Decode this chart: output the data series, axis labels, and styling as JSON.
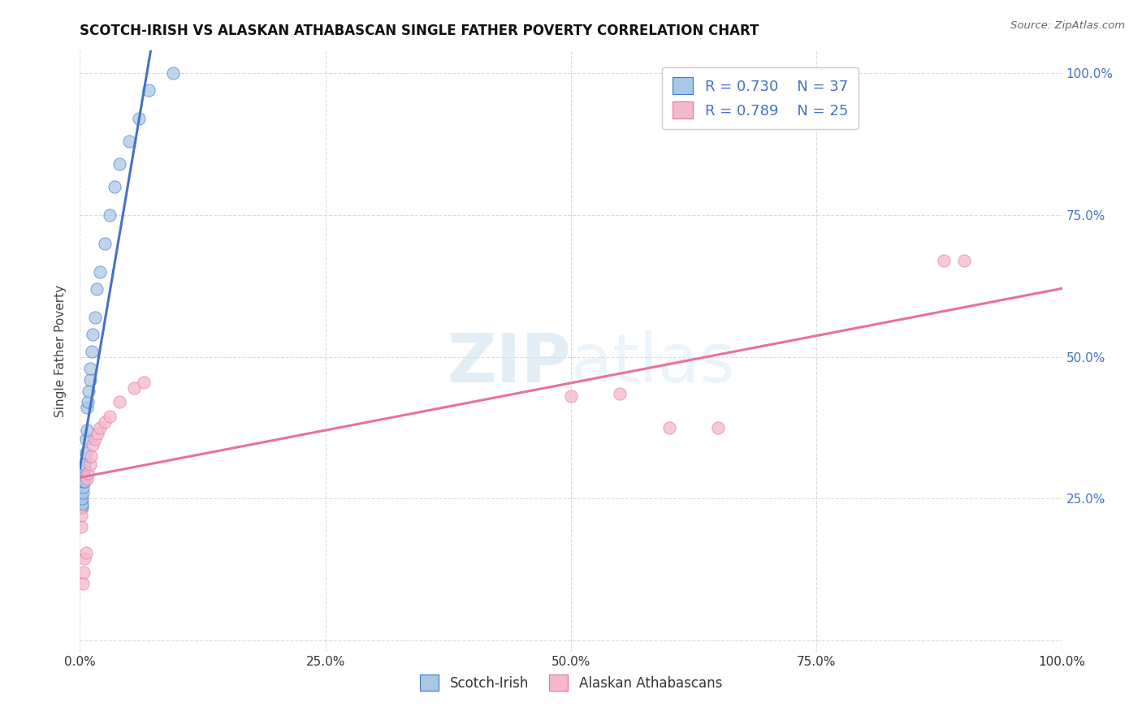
{
  "title": "SCOTCH-IRISH VS ALASKAN ATHABASCAN SINGLE FATHER POVERTY CORRELATION CHART",
  "source": "Source: ZipAtlas.com",
  "ylabel": "Single Father Poverty",
  "watermark": "ZIPatlas",
  "legend_label1": "Scotch-Irish",
  "legend_label2": "Alaskan Athabascans",
  "R1": "0.730",
  "N1": "37",
  "R2": "0.789",
  "N2": "25",
  "color1": "#a8c8e8",
  "color2": "#f5b8cc",
  "line_color1": "#4472c4",
  "line_color2": "#e8719a",
  "scotch_irish_x": [
    0.001,
    0.001,
    0.001,
    0.001,
    0.001,
    0.002,
    0.002,
    0.002,
    0.003,
    0.003,
    0.003,
    0.004,
    0.004,
    0.005,
    0.005,
    0.005,
    0.006,
    0.006,
    0.007,
    0.007,
    0.008,
    0.009,
    0.01,
    0.01,
    0.012,
    0.013,
    0.015,
    0.017,
    0.02,
    0.025,
    0.03,
    0.035,
    0.04,
    0.05,
    0.06,
    0.07,
    0.095
  ],
  "scotch_irish_y": [
    0.235,
    0.24,
    0.245,
    0.25,
    0.255,
    0.235,
    0.24,
    0.25,
    0.26,
    0.27,
    0.28,
    0.29,
    0.3,
    0.28,
    0.305,
    0.31,
    0.33,
    0.355,
    0.37,
    0.41,
    0.42,
    0.44,
    0.46,
    0.48,
    0.51,
    0.54,
    0.57,
    0.62,
    0.65,
    0.7,
    0.75,
    0.8,
    0.84,
    0.88,
    0.92,
    0.97,
    1.0
  ],
  "alaskan_x": [
    0.001,
    0.001,
    0.003,
    0.004,
    0.005,
    0.006,
    0.007,
    0.008,
    0.01,
    0.011,
    0.013,
    0.015,
    0.018,
    0.02,
    0.025,
    0.03,
    0.04,
    0.055,
    0.065,
    0.5,
    0.55,
    0.6,
    0.65,
    0.88,
    0.9
  ],
  "alaskan_y": [
    0.2,
    0.22,
    0.1,
    0.12,
    0.145,
    0.155,
    0.285,
    0.295,
    0.31,
    0.325,
    0.345,
    0.355,
    0.365,
    0.375,
    0.385,
    0.395,
    0.42,
    0.445,
    0.455,
    0.43,
    0.435,
    0.375,
    0.375,
    0.67,
    0.67
  ],
  "xlim": [
    0.0,
    1.0
  ],
  "ylim": [
    0.0,
    1.0
  ],
  "background": "#ffffff",
  "grid_color": "#cccccc",
  "right_tick_color": "#4472c4"
}
